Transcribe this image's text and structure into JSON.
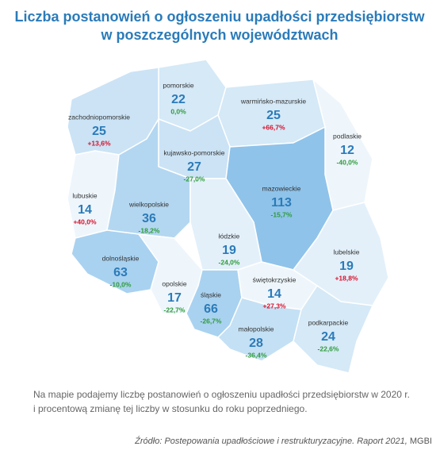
{
  "header": {
    "title_lines": [
      "Liczba postanowień o ogłoszeniu upadłości przedsiębiorstw",
      "w poszczególnych województwach"
    ]
  },
  "regions": [
    {
      "name": "pomorskie",
      "count": 22,
      "change": "0,0%"
    },
    {
      "name": "warmińsko-mazurskie",
      "count": 25,
      "change": "+66,7%"
    },
    {
      "name": "zachodniopomorskie",
      "count": 25,
      "change": "+13,6%"
    },
    {
      "name": "podlaskie",
      "count": 12,
      "change": "-40,0%"
    },
    {
      "name": "kujawsko-pomorskie",
      "count": 27,
      "change": "-27,0%"
    },
    {
      "name": "mazowieckie",
      "count": 113,
      "change": "-15,7%"
    },
    {
      "name": "lubuskie",
      "count": 14,
      "change": "+40,0%"
    },
    {
      "name": "wielkopolskie",
      "count": 36,
      "change": "-18,2%"
    },
    {
      "name": "łódzkie",
      "count": 19,
      "change": "-24,0%"
    },
    {
      "name": "lubelskie",
      "count": 19,
      "change": "+18,8%"
    },
    {
      "name": "dolnośląskie",
      "count": 63,
      "change": "-10,0%"
    },
    {
      "name": "opolskie",
      "count": 17,
      "change": "-22,7%"
    },
    {
      "name": "śląskie",
      "count": 66,
      "change": "-26,7%"
    },
    {
      "name": "świętokrzyskie",
      "count": 14,
      "change": "+27,3%"
    },
    {
      "name": "małopolskie",
      "count": 28,
      "change": "-36,4%"
    },
    {
      "name": "podkarpackie",
      "count": 24,
      "change": "-22,6%"
    }
  ],
  "note_lines": [
    "Na mapie podajemy liczbę postanowień o ogłoszeniu upadłości przedsiębiorstw w 2020 r.",
    "i procentową zmianę tej liczby w stosunku do roku poprzedniego."
  ],
  "source": {
    "italic": "Źródło: Postepowania upadłościowe i restrukturyzacyjne. Raport 2021,",
    "plain": "MGBI"
  }
}
